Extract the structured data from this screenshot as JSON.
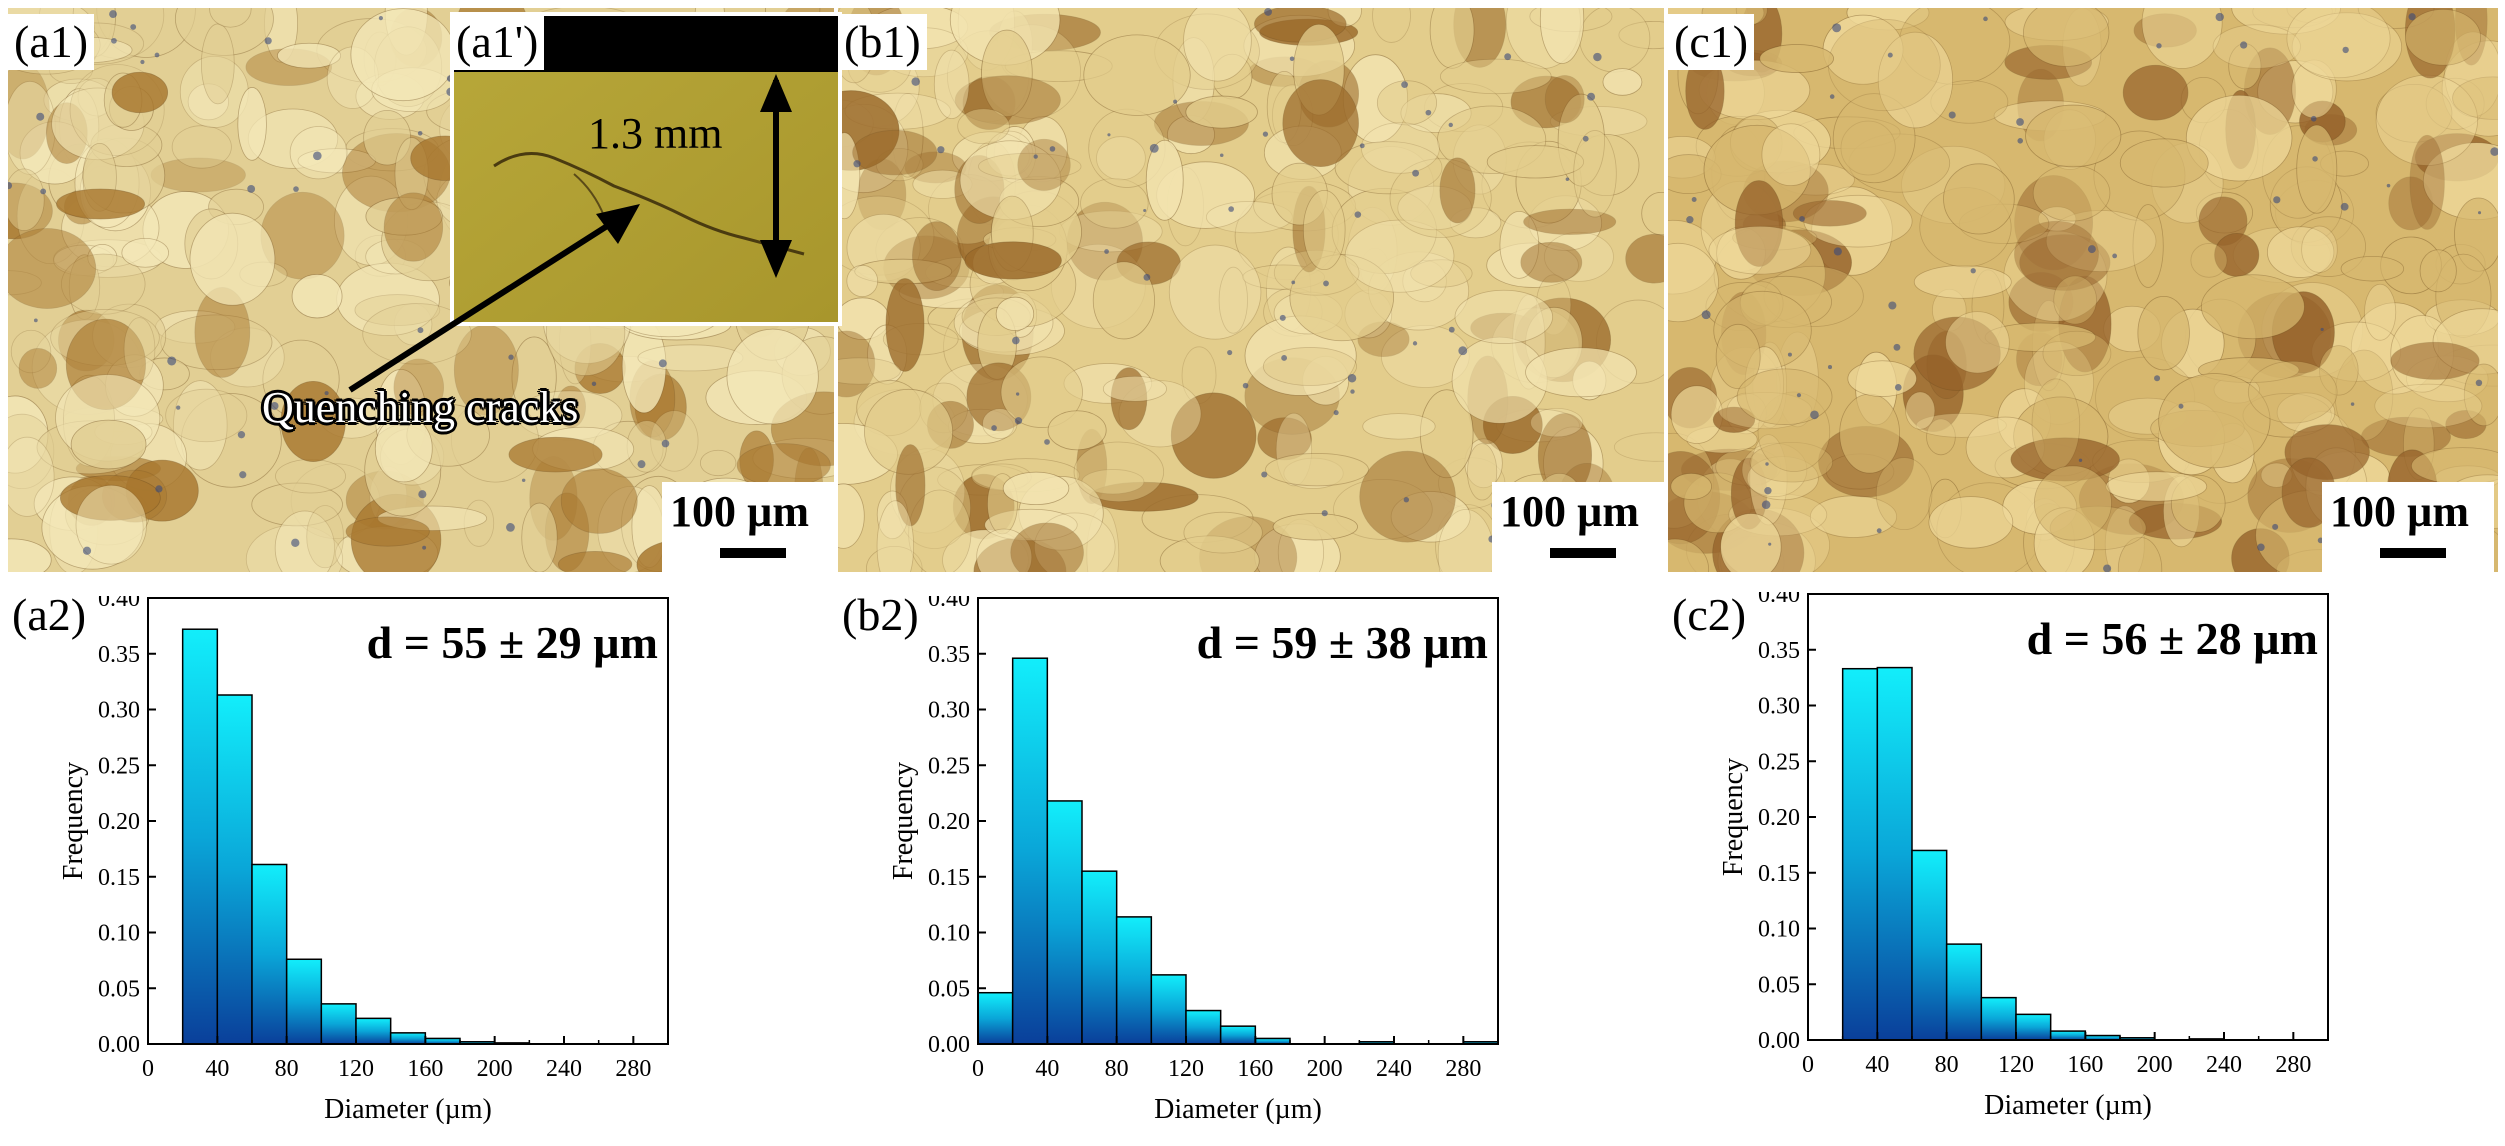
{
  "panels_top": [
    {
      "id": "a1",
      "label": "(a1)",
      "scale_text": "100 µm",
      "base": "#e2cf94",
      "dark": "#a8772e",
      "light": "#f4e8b8",
      "seed": 7
    },
    {
      "id": "b1",
      "label": "(b1)",
      "scale_text": "100 µm",
      "base": "#e3cd8c",
      "dark": "#9b6a2a",
      "light": "#f3e4b0",
      "seed": 19
    },
    {
      "id": "c1",
      "label": "(c1)",
      "scale_text": "100 µm",
      "base": "#d7b86f",
      "dark": "#96622a",
      "light": "#efd99a",
      "seed": 31
    }
  ],
  "inset": {
    "label": "(a1')",
    "dimension": "1.3 mm",
    "annotation": "Quenching cracks"
  },
  "chart_data": [
    {
      "type": "bar",
      "panel_label": "(a2)",
      "annotation": "d = 55 ± 29 µm",
      "xlabel": "Diameter (µm)",
      "ylabel": "Frequency",
      "xlim": [
        0,
        300
      ],
      "ylim": [
        0,
        0.4
      ],
      "xticks": [
        0,
        40,
        80,
        120,
        160,
        200,
        240,
        280
      ],
      "yticks": [
        "0.00",
        "0.05",
        "0.10",
        "0.15",
        "0.20",
        "0.25",
        "0.30",
        "0.35",
        "0.40"
      ],
      "bin_width": 20,
      "bins": [
        {
          "start": 20,
          "value": 0.372
        },
        {
          "start": 40,
          "value": 0.313
        },
        {
          "start": 60,
          "value": 0.161
        },
        {
          "start": 80,
          "value": 0.076
        },
        {
          "start": 100,
          "value": 0.036
        },
        {
          "start": 120,
          "value": 0.023
        },
        {
          "start": 140,
          "value": 0.01
        },
        {
          "start": 160,
          "value": 0.005
        },
        {
          "start": 180,
          "value": 0.002
        },
        {
          "start": 200,
          "value": 0.001
        }
      ]
    },
    {
      "type": "bar",
      "panel_label": "(b2)",
      "annotation": "d = 59 ± 38 µm",
      "xlabel": "Diameter (µm)",
      "ylabel": "Frequency",
      "xlim": [
        0,
        300
      ],
      "ylim": [
        0,
        0.4
      ],
      "xticks": [
        0,
        40,
        80,
        120,
        160,
        200,
        240,
        280
      ],
      "yticks": [
        "0.00",
        "0.05",
        "0.10",
        "0.15",
        "0.20",
        "0.25",
        "0.30",
        "0.35",
        "0.40"
      ],
      "bin_width": 20,
      "bins": [
        {
          "start": 0,
          "value": 0.046
        },
        {
          "start": 20,
          "value": 0.346
        },
        {
          "start": 40,
          "value": 0.218
        },
        {
          "start": 60,
          "value": 0.155
        },
        {
          "start": 80,
          "value": 0.114
        },
        {
          "start": 100,
          "value": 0.062
        },
        {
          "start": 120,
          "value": 0.03
        },
        {
          "start": 140,
          "value": 0.016
        },
        {
          "start": 160,
          "value": 0.005
        },
        {
          "start": 220,
          "value": 0.002
        },
        {
          "start": 280,
          "value": 0.002
        }
      ]
    },
    {
      "type": "bar",
      "panel_label": "(c2)",
      "annotation": "d = 56 ± 28 µm",
      "xlabel": "Diameter (µm)",
      "ylabel": "Frequency",
      "xlim": [
        0,
        300
      ],
      "ylim": [
        0,
        0.4
      ],
      "xticks": [
        0,
        40,
        80,
        120,
        160,
        200,
        240,
        280
      ],
      "yticks": [
        "0.00",
        "0.05",
        "0.10",
        "0.15",
        "0.20",
        "0.25",
        "0.30",
        "0.35",
        "0.40"
      ],
      "bin_width": 20,
      "bins": [
        {
          "start": 20,
          "value": 0.333
        },
        {
          "start": 40,
          "value": 0.334
        },
        {
          "start": 60,
          "value": 0.17
        },
        {
          "start": 80,
          "value": 0.086
        },
        {
          "start": 100,
          "value": 0.038
        },
        {
          "start": 120,
          "value": 0.023
        },
        {
          "start": 140,
          "value": 0.008
        },
        {
          "start": 160,
          "value": 0.004
        },
        {
          "start": 180,
          "value": 0.002
        },
        {
          "start": 220,
          "value": 0.001
        }
      ]
    }
  ]
}
